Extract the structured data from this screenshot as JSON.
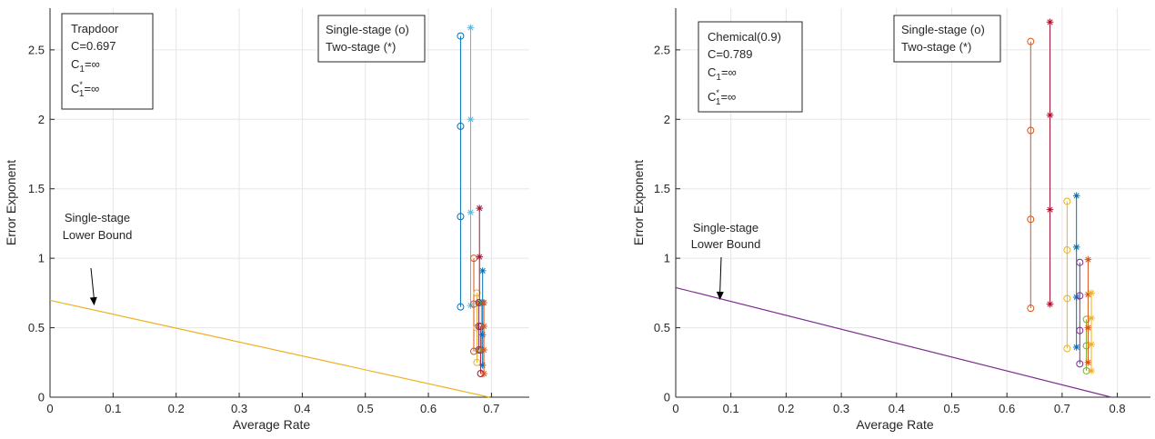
{
  "chart_data": [
    {
      "type": "scatter",
      "xlabel": "Average Rate",
      "ylabel": "Error Exponent",
      "xlim": [
        0,
        0.76
      ],
      "ylim": [
        0,
        2.8
      ],
      "x_ticks": [
        "0",
        "0.1",
        "0.2",
        "0.3",
        "0.4",
        "0.5",
        "0.6",
        "0.7"
      ],
      "y_ticks": [
        "0",
        "0.5",
        "1",
        "1.5",
        "2",
        "2.5"
      ],
      "grid": true,
      "info_box": {
        "lines": [
          "Trapdoor",
          "C=0.697"
        ],
        "c1": "=∞",
        "c1s": "=∞",
        "sub": "1",
        "star": "*",
        "base": "C"
      },
      "legend": [
        "Single-stage (o)",
        "Two-stage (*)"
      ],
      "annotation": {
        "lines": [
          "Single-stage",
          "Lower Bound"
        ],
        "arrow_to": [
          0.07,
          0.66
        ]
      },
      "bound_line": {
        "color": "#EDB120",
        "points": [
          [
            0,
            0.697
          ],
          [
            0.697,
            0
          ]
        ]
      },
      "series": [
        {
          "marker": "o",
          "color": "#0072BD",
          "x": 0.651,
          "y": [
            0.65,
            1.3,
            1.95,
            2.6
          ]
        },
        {
          "marker": "*",
          "color": "#4DBEEE",
          "x": 0.667,
          "y": [
            0.66,
            1.33,
            2.0,
            2.66
          ]
        },
        {
          "marker": "o",
          "color": "#D95319",
          "x": 0.672,
          "y": [
            0.33,
            0.67,
            1.0
          ]
        },
        {
          "marker": "o",
          "color": "#EDB120",
          "x": 0.677,
          "y": [
            0.25,
            0.5,
            0.75
          ]
        },
        {
          "marker": "o",
          "color": "#7E2F8E",
          "x": 0.68,
          "y": [
            0.34,
            0.51,
            0.68
          ]
        },
        {
          "marker": "*",
          "color": "#A2142F",
          "x": 0.681,
          "y": [
            0.68,
            1.01,
            1.36
          ]
        },
        {
          "marker": "o",
          "color": "#A2142F",
          "x": 0.683,
          "y": [
            0.17,
            0.34,
            0.51
          ]
        },
        {
          "marker": "*",
          "color": "#77AC30",
          "x": 0.684,
          "y": [
            0.34,
            0.68
          ]
        },
        {
          "marker": "*",
          "color": "#0072BD",
          "x": 0.686,
          "y": [
            0.23,
            0.45,
            0.68,
            0.91
          ]
        },
        {
          "marker": "*",
          "color": "#D95319",
          "x": 0.688,
          "y": [
            0.17,
            0.34,
            0.51,
            0.68
          ]
        }
      ]
    },
    {
      "type": "scatter",
      "xlabel": "Average Rate",
      "ylabel": "Error Exponent",
      "xlim": [
        0,
        0.86
      ],
      "ylim": [
        0,
        2.8
      ],
      "x_ticks": [
        "0",
        "0.1",
        "0.2",
        "0.3",
        "0.4",
        "0.5",
        "0.6",
        "0.7",
        "0.8"
      ],
      "y_ticks": [
        "0",
        "0.5",
        "1",
        "1.5",
        "2",
        "2.5"
      ],
      "grid": true,
      "info_box": {
        "lines": [
          "Chemical(0.9)",
          "C=0.789"
        ],
        "c1": "=∞",
        "c1s": "=∞",
        "sub": "1",
        "star": "*",
        "base": "C"
      },
      "legend": [
        "Single-stage (o)",
        "Two-stage (*)"
      ],
      "annotation": {
        "lines": [
          "Single-stage",
          "Lower Bound"
        ],
        "arrow_to": [
          0.08,
          0.7
        ]
      },
      "bound_line": {
        "color": "#7E2F8E",
        "points": [
          [
            0,
            0.789
          ],
          [
            0.789,
            0
          ]
        ]
      },
      "series": [
        {
          "marker": "o",
          "color": "#D95319",
          "x": 0.643,
          "y": [
            0.64,
            1.28,
            1.92,
            2.56
          ]
        },
        {
          "marker": "*",
          "color": "#A2142F",
          "x": 0.678,
          "y": [
            0.67,
            1.35,
            2.03,
            2.7
          ]
        },
        {
          "marker": "o",
          "color": "#EDB120",
          "x": 0.709,
          "y": [
            0.35,
            0.71,
            1.06,
            1.41
          ]
        },
        {
          "marker": "*",
          "color": "#0072BD",
          "x": 0.726,
          "y": [
            0.36,
            0.72,
            1.08,
            1.45
          ]
        },
        {
          "marker": "o",
          "color": "#7E2F8E",
          "x": 0.732,
          "y": [
            0.24,
            0.48,
            0.73,
            0.97
          ]
        },
        {
          "marker": "o",
          "color": "#77AC30",
          "x": 0.744,
          "y": [
            0.19,
            0.37,
            0.56
          ]
        },
        {
          "marker": "*",
          "color": "#D95319",
          "x": 0.747,
          "y": [
            0.25,
            0.5,
            0.74,
            0.99
          ]
        },
        {
          "marker": "*",
          "color": "#EDB120",
          "x": 0.753,
          "y": [
            0.19,
            0.38,
            0.57,
            0.75
          ]
        }
      ]
    }
  ]
}
